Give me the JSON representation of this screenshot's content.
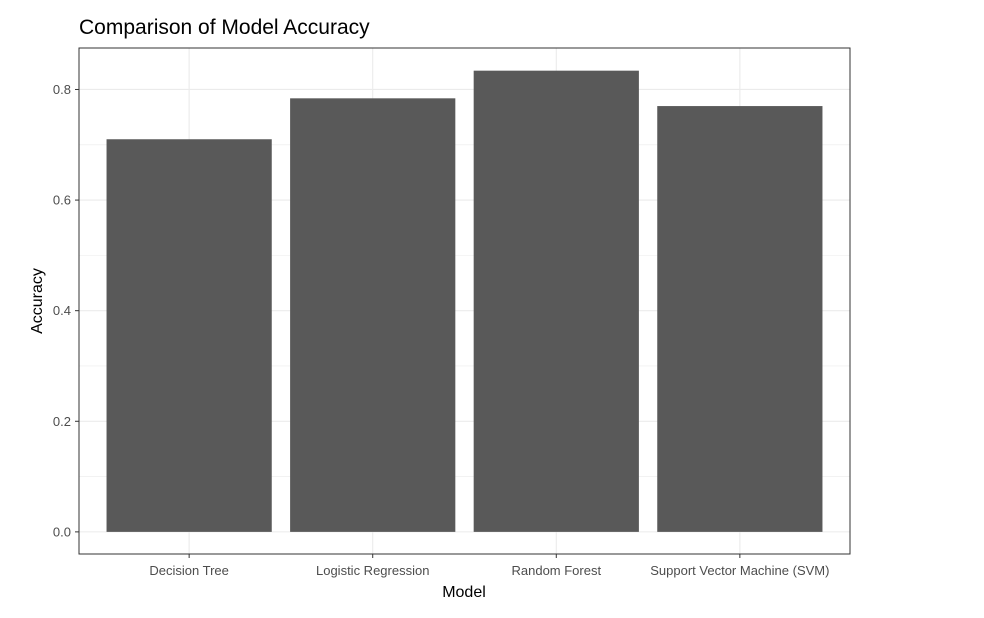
{
  "chart_data": {
    "type": "bar",
    "title": "Comparison of Model Accuracy",
    "xlabel": "Model",
    "ylabel": "Accuracy",
    "categories": [
      "Decision Tree",
      "Logistic Regression",
      "Random Forest",
      "Support Vector Machine (SVM)"
    ],
    "values": [
      0.71,
      0.784,
      0.834,
      0.77
    ],
    "ylim": [
      -0.04,
      0.875
    ],
    "yticks": [
      0.0,
      0.2,
      0.4,
      0.6,
      0.8
    ],
    "ytick_labels": [
      "0.0",
      "0.2",
      "0.4",
      "0.6",
      "0.8"
    ],
    "grid": true,
    "legend": "none",
    "colors": {
      "bar": "#595959",
      "grid": "#ebebeb",
      "panel_border": "#333333",
      "tick_text": "#4d4d4d",
      "tick_mark": "#333333"
    }
  }
}
